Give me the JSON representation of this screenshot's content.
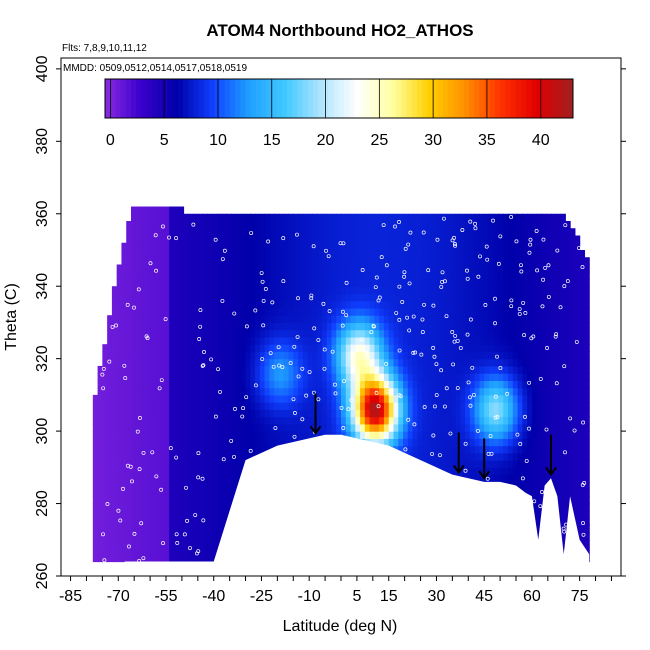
{
  "chart_data": {
    "type": "heatmap",
    "title": "ATOM4 Northbound HO2_ATHOS",
    "annotations": {
      "flights": "Flts: 7,8,9,10,11,12",
      "dates": "MMDD: 0509,0512,0514,0517,0518,0519"
    },
    "xlabel": "Latitude (deg N)",
    "ylabel": "Theta (C)",
    "xlim": [
      -88,
      88
    ],
    "ylim": [
      260,
      403
    ],
    "xticks": [
      -85,
      -70,
      -55,
      -40,
      -25,
      -10,
      5,
      15,
      30,
      45,
      60,
      75
    ],
    "yticks": [
      260,
      280,
      300,
      320,
      340,
      360,
      380,
      400
    ],
    "colorbar": {
      "range": [
        -0.5,
        43
      ],
      "tick_values": [
        0,
        5,
        10,
        15,
        20,
        25,
        30,
        35,
        40
      ],
      "tick_labels": [
        "0",
        "5",
        "10",
        "15",
        "20",
        "25",
        "30",
        "35",
        "40"
      ],
      "colors": [
        "#8a2be2",
        "#3a00cc",
        "#0000aa",
        "#1040ff",
        "#1ea0ff",
        "#40c8ff",
        "#b0e4ff",
        "#ffffff",
        "#ffffa0",
        "#ffd000",
        "#ff9000",
        "#ff3000",
        "#e00000",
        "#a02020"
      ]
    },
    "grid": false,
    "legend": "colorbar top",
    "surface_boundary": {
      "lat": [
        -68,
        -65,
        -60,
        -55,
        -50,
        -45,
        -40,
        -30,
        -20,
        -10,
        -5,
        0,
        5,
        10,
        15,
        20,
        25,
        30,
        35,
        40,
        45,
        50,
        55,
        58,
        60,
        62,
        64,
        66,
        68,
        70,
        72,
        75,
        78
      ],
      "theta": [
        264,
        264,
        264,
        264,
        264,
        264,
        264,
        292,
        296,
        298,
        299,
        299,
        298,
        297,
        296,
        294,
        292,
        290,
        288,
        287,
        286,
        286,
        285,
        283,
        282,
        270,
        285,
        287,
        282,
        266,
        282,
        270,
        266
      ]
    },
    "top_boundary": {
      "lat": [
        -78,
        -74,
        -70,
        -66,
        -62,
        -58,
        -50,
        -40,
        -30,
        -20,
        -10,
        0,
        10,
        20,
        30,
        40,
        50,
        60,
        70,
        78
      ],
      "theta": [
        305,
        325,
        345,
        360,
        362,
        362,
        360,
        360,
        360,
        360,
        360,
        360,
        360,
        360,
        360,
        360,
        360,
        360,
        360,
        345
      ]
    },
    "hotspots": [
      {
        "lat": 10,
        "theta": 305,
        "value": 40
      },
      {
        "lat": 5,
        "theta": 320,
        "value": 22
      },
      {
        "lat": 48,
        "theta": 305,
        "value": 18
      },
      {
        "lat": -20,
        "theta": 315,
        "value": 12
      }
    ],
    "arrows_lat": [
      -8,
      37,
      45,
      66
    ]
  }
}
